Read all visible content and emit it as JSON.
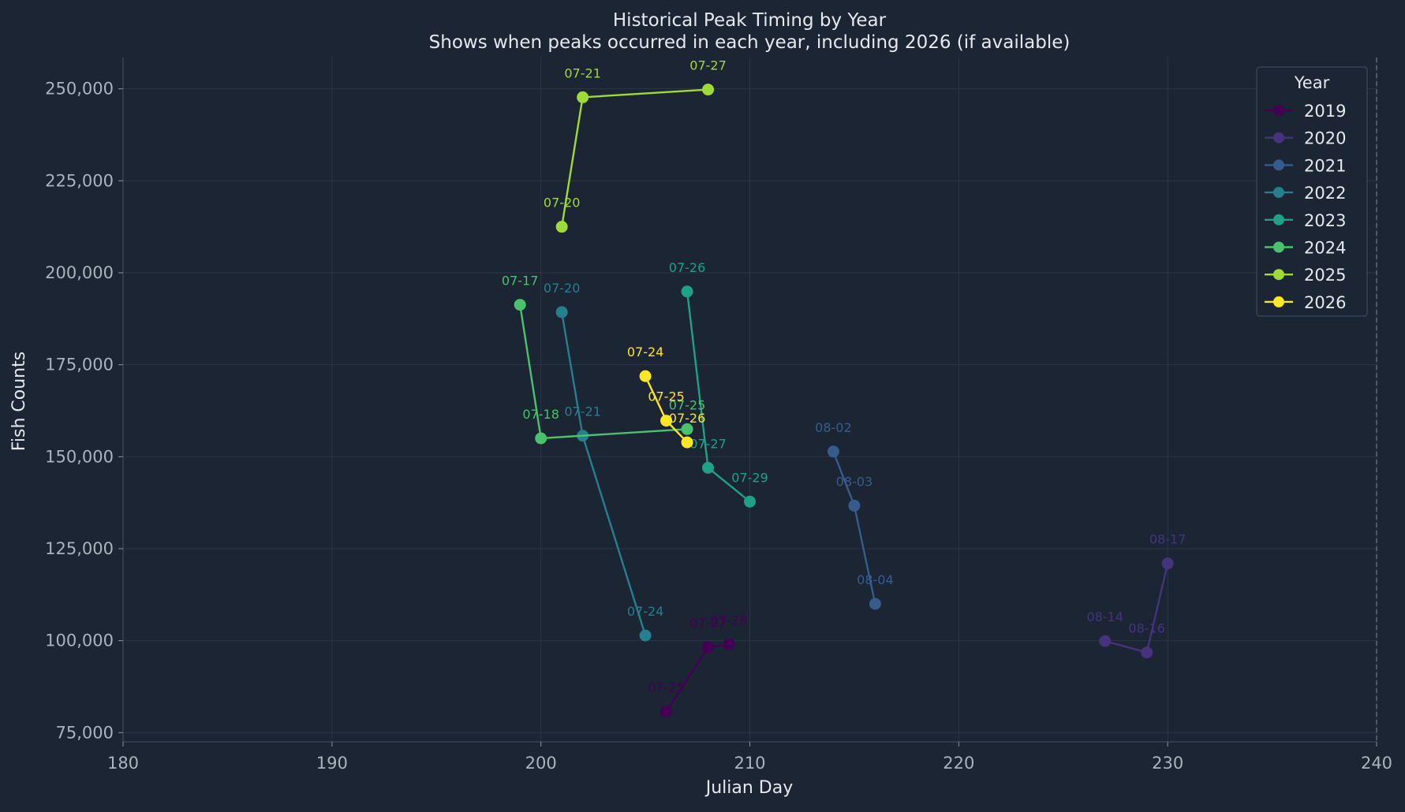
{
  "chart_data": {
    "type": "line",
    "title": "Historical Peak Timing by Year",
    "subtitle": "Shows when peaks occurred in each year, including 2026 (if available)",
    "xlabel": "Julian Day",
    "ylabel": "Fish Counts",
    "xlim": [
      180,
      240
    ],
    "ylim": [
      72500,
      258500
    ],
    "xticks": [
      180,
      190,
      200,
      210,
      220,
      230,
      240
    ],
    "xtick_labels": [
      "180",
      "190",
      "200",
      "210",
      "220",
      "230",
      "240"
    ],
    "yticks": [
      75000,
      100000,
      125000,
      150000,
      175000,
      200000,
      225000,
      250000
    ],
    "ytick_labels": [
      "75,000",
      "100,000",
      "125,000",
      "150,000",
      "175,000",
      "200,000",
      "225,000",
      "250,000"
    ],
    "grid": true,
    "reference_line": {
      "x": 240,
      "style": "dashed"
    },
    "legend": {
      "title": "Year",
      "placement": "top-right"
    },
    "series": [
      {
        "name": "2019",
        "color": "#440154",
        "points": [
          {
            "x": 206,
            "y": 80700,
            "label": "07-25"
          },
          {
            "x": 208,
            "y": 98200,
            "label": "07-27"
          },
          {
            "x": 209,
            "y": 99000,
            "label": "07-28"
          }
        ]
      },
      {
        "name": "2020",
        "color": "#46337e",
        "points": [
          {
            "x": 227,
            "y": 99900,
            "label": "08-14"
          },
          {
            "x": 229,
            "y": 96800,
            "label": "08-16"
          },
          {
            "x": 230,
            "y": 121000,
            "label": "08-17"
          }
        ]
      },
      {
        "name": "2021",
        "color": "#365c8d",
        "points": [
          {
            "x": 214,
            "y": 151400,
            "label": "08-02"
          },
          {
            "x": 215,
            "y": 136700,
            "label": "08-03"
          },
          {
            "x": 216,
            "y": 110000,
            "label": "08-04"
          }
        ]
      },
      {
        "name": "2022",
        "color": "#277f8e",
        "points": [
          {
            "x": 201,
            "y": 189300,
            "label": "07-20"
          },
          {
            "x": 202,
            "y": 155700,
            "label": "07-21"
          },
          {
            "x": 205,
            "y": 101400,
            "label": "07-24"
          }
        ]
      },
      {
        "name": "2023",
        "color": "#1fa187",
        "points": [
          {
            "x": 207,
            "y": 194900,
            "label": "07-26"
          },
          {
            "x": 208,
            "y": 147000,
            "label": "07-27"
          },
          {
            "x": 210,
            "y": 137800,
            "label": "07-29"
          }
        ]
      },
      {
        "name": "2024",
        "color": "#4ac16d",
        "points": [
          {
            "x": 199,
            "y": 191300,
            "label": "07-17"
          },
          {
            "x": 200,
            "y": 155000,
            "label": "07-18"
          },
          {
            "x": 207,
            "y": 157500,
            "label": "07-25"
          }
        ]
      },
      {
        "name": "2025",
        "color": "#a0da39",
        "points": [
          {
            "x": 201,
            "y": 212500,
            "label": "07-20"
          },
          {
            "x": 202,
            "y": 247700,
            "label": "07-21"
          },
          {
            "x": 208,
            "y": 249800,
            "label": "07-27"
          }
        ]
      },
      {
        "name": "2026",
        "color": "#fde725",
        "points": [
          {
            "x": 205,
            "y": 171900,
            "label": "07-24"
          },
          {
            "x": 206,
            "y": 159800,
            "label": "07-25"
          },
          {
            "x": 207,
            "y": 153900,
            "label": "07-26"
          }
        ]
      }
    ]
  }
}
